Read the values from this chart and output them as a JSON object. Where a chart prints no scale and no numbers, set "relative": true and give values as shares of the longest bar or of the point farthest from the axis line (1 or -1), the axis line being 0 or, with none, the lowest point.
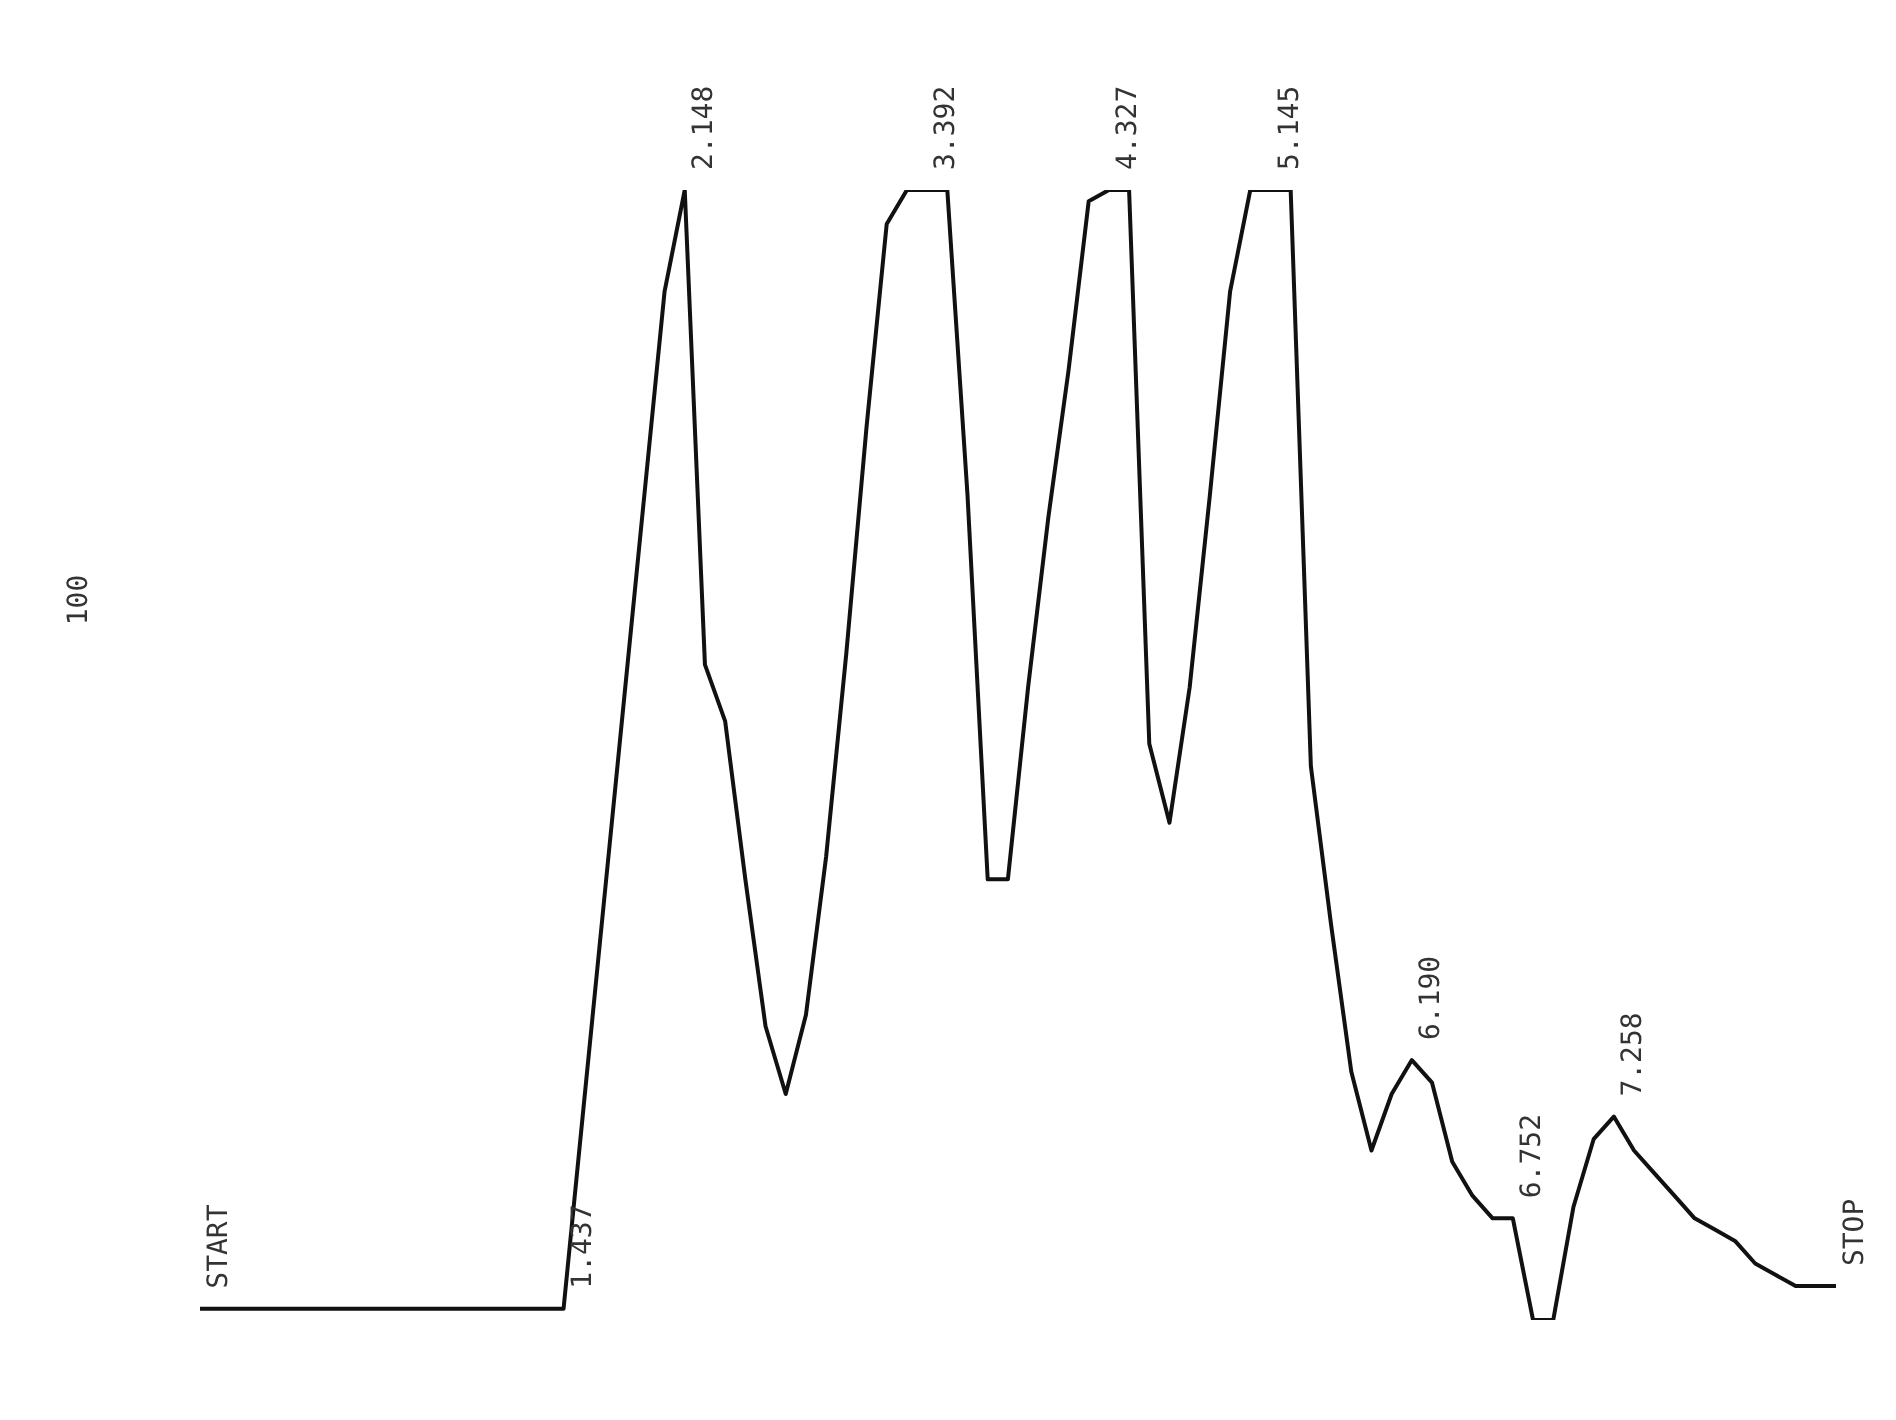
{
  "chart_data": {
    "type": "line",
    "relative": true,
    "color": "#111111",
    "categories": [
      null,
      null,
      null,
      null,
      null,
      null,
      null,
      null,
      null,
      null,
      null,
      null,
      null,
      null,
      null,
      null,
      null,
      null,
      null,
      null,
      null,
      null,
      null,
      null,
      null,
      null,
      null,
      null,
      null,
      null,
      null,
      null,
      null,
      null,
      null,
      null,
      null,
      null,
      null,
      null,
      null,
      null,
      null,
      null,
      null,
      null,
      null,
      null,
      null,
      null,
      null,
      null,
      null,
      null,
      null,
      null,
      null,
      null,
      null,
      null,
      null,
      null,
      null,
      null,
      null,
      null,
      null,
      null,
      null,
      null,
      null,
      null,
      null,
      null,
      null,
      null,
      null,
      null,
      null,
      null,
      null,
      null
    ],
    "values": [
      0.01,
      0.01,
      0.01,
      0.01,
      0.01,
      0.01,
      0.01,
      0.01,
      0.01,
      0.01,
      0.01,
      0.01,
      0.01,
      0.01,
      0.01,
      0.01,
      0.01,
      0.01,
      0.01,
      0.19,
      0.37,
      0.55,
      0.73,
      0.91,
      1,
      0.58,
      0.53,
      0.39,
      0.26,
      0.2,
      0.27,
      0.41,
      0.59,
      0.79,
      0.97,
      1,
      1,
      1,
      0.73,
      0.39,
      0.39,
      0.56,
      0.71,
      0.84,
      0.99,
      1,
      1,
      0.51,
      0.44,
      0.56,
      0.73,
      0.91,
      1,
      1,
      1,
      0.49,
      0.35,
      0.22,
      0.15,
      0.2,
      0.23,
      0.21,
      0.14,
      0.11,
      0.09,
      0.09,
      0,
      0,
      0.1,
      0.16,
      0.18,
      0.15,
      0.13,
      0.11,
      0.09,
      0.08,
      0.07,
      0.05,
      0.04,
      0.03,
      0.03,
      0.03
    ],
    "annotations": [
      "START",
      "1.437",
      "2.148",
      "3.392",
      "4.327",
      "5.145",
      "6.190",
      "6.752",
      "7.258",
      "STOP",
      "100"
    ]
  }
}
